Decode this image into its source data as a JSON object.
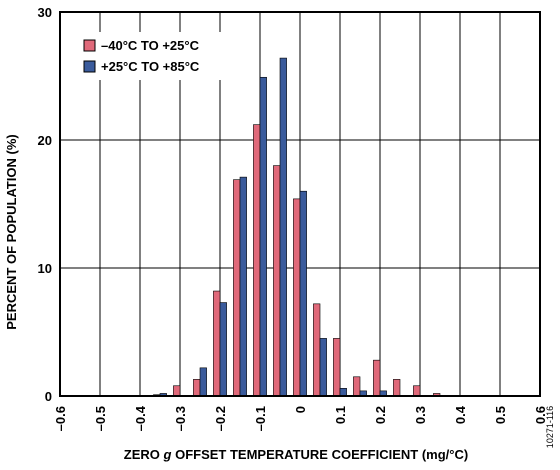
{
  "chart_data": {
    "type": "bar",
    "xlabel_prefix": "ZERO ",
    "xlabel_italic": "g",
    "xlabel_suffix": " OFFSET TEMPERATURE COEFFICIENT (mg/°C)",
    "ylabel": "PERCENT OF POPULATION (%)",
    "figure_id": "10271-116",
    "xlim": [
      -0.6,
      0.6
    ],
    "ylim": [
      0,
      30
    ],
    "x_ticks": [
      -0.6,
      -0.5,
      -0.4,
      -0.3,
      -0.2,
      -0.1,
      0,
      0.1,
      0.2,
      0.3,
      0.4,
      0.5,
      0.6
    ],
    "x_tick_labels": [
      "–0.6",
      "–0.5",
      "–0.4",
      "–0.3",
      "–0.2",
      "–0.1",
      "0",
      "0.1",
      "0.2",
      "0.3",
      "0.4",
      "0.5",
      "0.6"
    ],
    "y_ticks": [
      0,
      10,
      20,
      30
    ],
    "y_tick_labels": [
      "0",
      "10",
      "20",
      "30"
    ],
    "grid": true,
    "bin_width": 0.05,
    "legend_position": "top-left",
    "bin_centers": [
      -0.35,
      -0.3,
      -0.25,
      -0.2,
      -0.15,
      -0.1,
      -0.05,
      0,
      0.05,
      0.1,
      0.15,
      0.2,
      0.25,
      0.3,
      0.35
    ],
    "series": [
      {
        "name": "–40°C TO +25°C",
        "color": "#e0697a",
        "values": [
          0.1,
          0.8,
          1.3,
          8.2,
          16.9,
          21.2,
          18.0,
          15.4,
          7.2,
          4.5,
          1.5,
          2.8,
          1.3,
          0.8,
          0.2
        ]
      },
      {
        "name": "+25°C TO +85°C",
        "color": "#3a5b9c",
        "values": [
          0.2,
          0,
          2.2,
          7.3,
          17.1,
          24.9,
          26.4,
          16.0,
          4.5,
          0.6,
          0.4,
          0.4,
          0,
          0,
          0
        ]
      }
    ]
  }
}
